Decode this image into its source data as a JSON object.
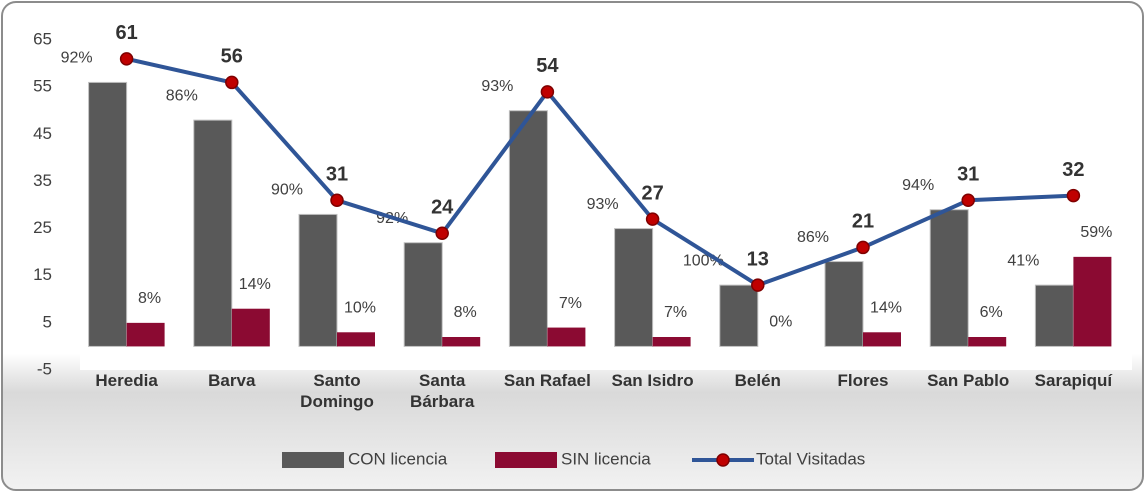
{
  "chart_data": {
    "type": "bar-line",
    "categories": [
      "Heredia",
      "Barva",
      "Santo Domingo",
      "Santa Bárbara",
      "San Rafael",
      "San Isidro",
      "Belén",
      "Flores",
      "San Pablo",
      "Sarapiquí"
    ],
    "series": [
      {
        "name": "CON licencia",
        "type": "bar",
        "color": "#595959",
        "values": [
          56,
          48,
          28,
          22,
          50,
          25,
          13,
          18,
          29,
          13
        ],
        "data_labels": [
          "92%",
          "86%",
          "90%",
          "92%",
          "93%",
          "93%",
          "100%",
          "86%",
          "94%",
          "41%"
        ]
      },
      {
        "name": "SIN licencia",
        "type": "bar",
        "color": "#8b0a32",
        "values": [
          5,
          8,
          3,
          2,
          4,
          2,
          0,
          3,
          2,
          19
        ],
        "data_labels": [
          "8%",
          "14%",
          "10%",
          "8%",
          "7%",
          "7%",
          "0%",
          "14%",
          "6%",
          "59%"
        ]
      },
      {
        "name": "Total Visitadas",
        "type": "line",
        "color": "#2f5597",
        "marker_color": "#c00000",
        "values": [
          61,
          56,
          31,
          24,
          54,
          27,
          13,
          21,
          31,
          32
        ]
      }
    ],
    "ylim": [
      -5,
      65
    ],
    "yticks": [
      -5,
      5,
      15,
      25,
      35,
      45,
      55,
      65
    ],
    "grid": false,
    "legend": "bottom"
  }
}
